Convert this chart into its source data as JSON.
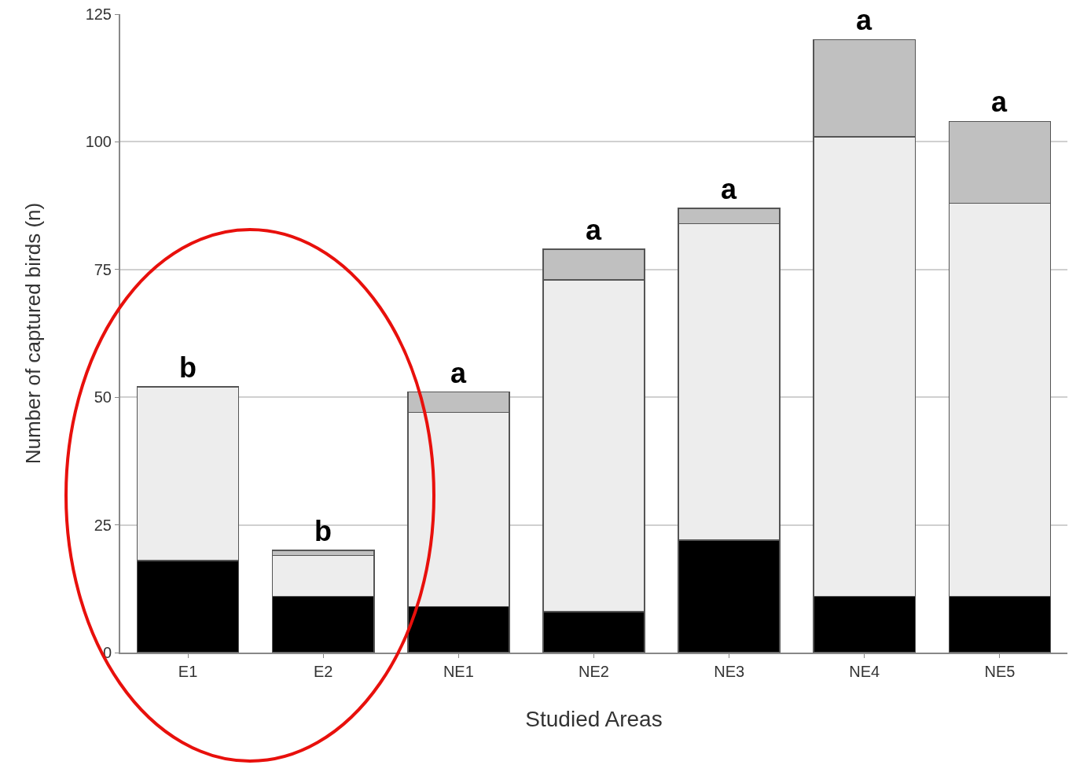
{
  "chart_data": {
    "type": "bar",
    "stacked": true,
    "xlabel": "Studied Areas",
    "ylabel": "Number of captured birds (n)",
    "categories": [
      "E1",
      "E2",
      "NE1",
      "NE2",
      "NE3",
      "NE4",
      "NE5"
    ],
    "series": [
      {
        "color": "#000000",
        "values": [
          18,
          11,
          9,
          8,
          22,
          11,
          11
        ]
      },
      {
        "color": "#ededed",
        "values": [
          34,
          8,
          38,
          65,
          62,
          90,
          77
        ]
      },
      {
        "color": "#c0c0c0",
        "values": [
          null,
          1,
          4,
          6,
          3,
          19,
          16
        ]
      }
    ],
    "ylim": [
      0,
      125
    ],
    "yticks": [
      0,
      25,
      50,
      75,
      100,
      125
    ],
    "grid": "y",
    "annotations": [
      {
        "text": "b",
        "x": "E1",
        "y": 52
      },
      {
        "text": "b",
        "x": "E2",
        "y": 20
      },
      {
        "text": "a",
        "x": "NE1",
        "y": 51
      },
      {
        "text": "a",
        "x": "NE2",
        "y": 79
      },
      {
        "text": "a",
        "x": "NE3",
        "y": 87
      },
      {
        "text": "a",
        "x": "NE4",
        "y": 120
      },
      {
        "text": "a",
        "x": "NE5",
        "y": 104
      }
    ]
  }
}
